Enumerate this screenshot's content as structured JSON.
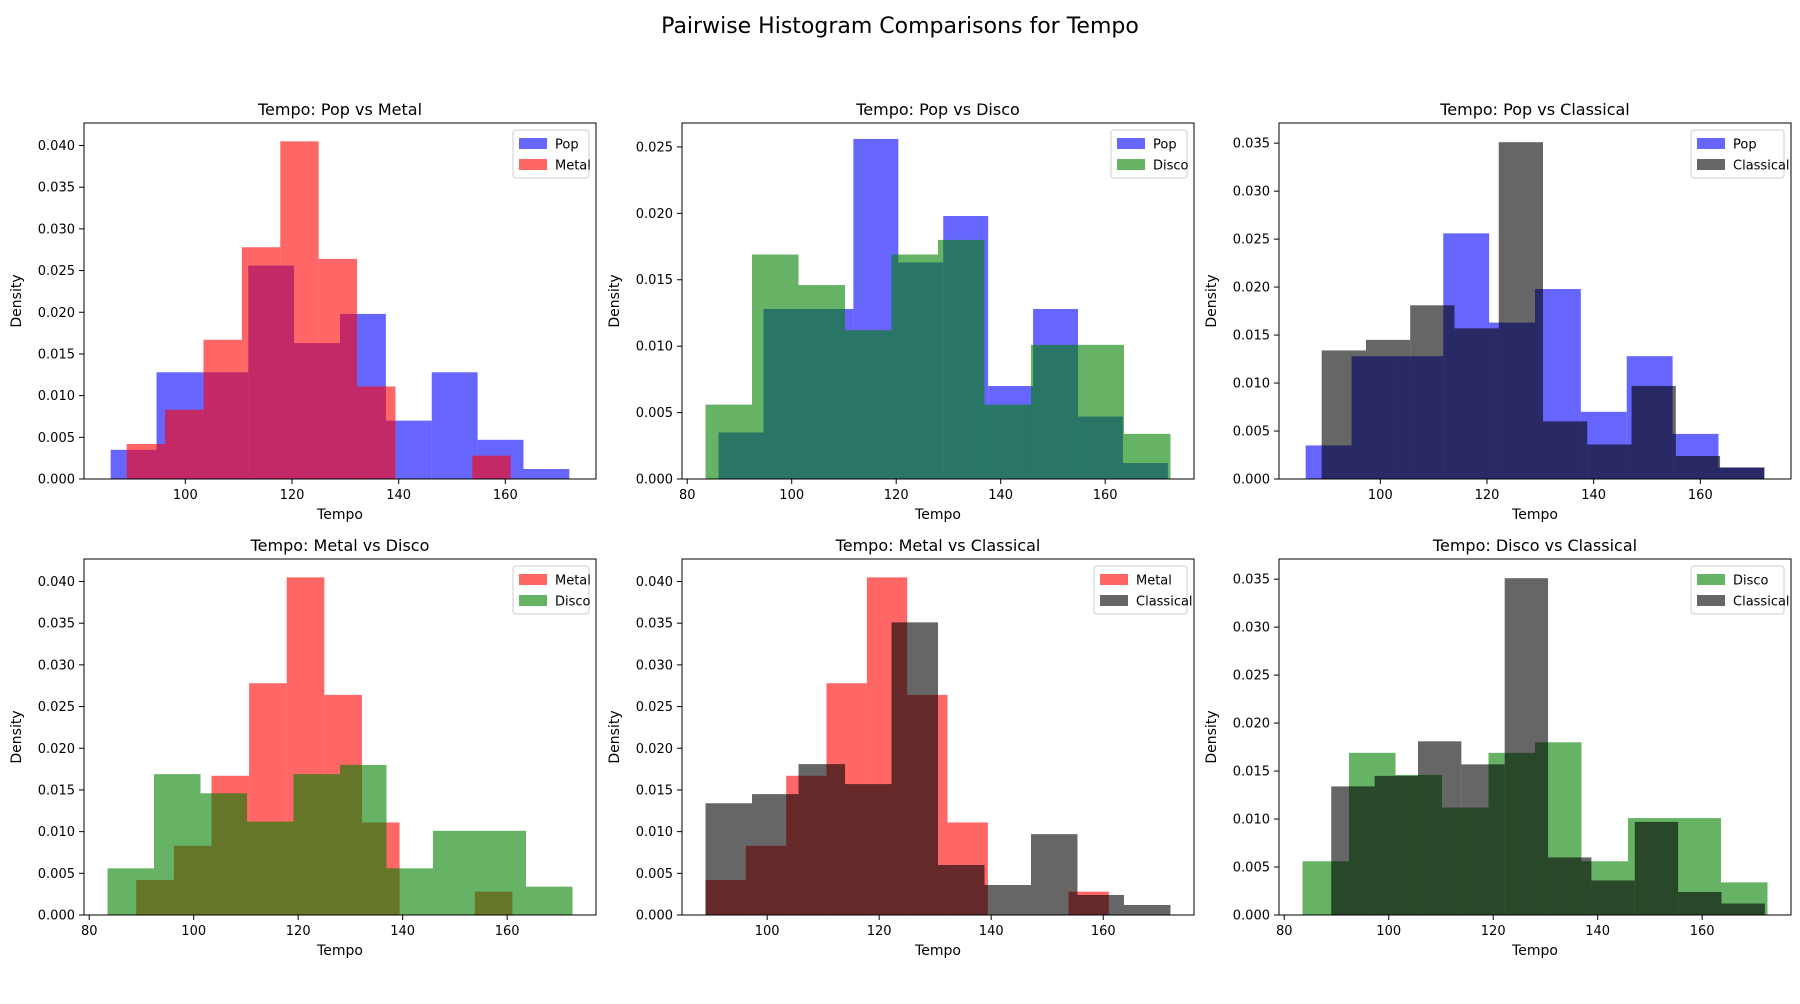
{
  "figure": {
    "title": "Pairwise Histogram Comparisons for Tempo"
  },
  "colors": {
    "Pop": "#0000ff",
    "Metal": "#ff0000",
    "Disco": "#008000",
    "Classical": "#000000"
  },
  "chart_data": [
    {
      "type": "bar",
      "title": "Tempo: Pop vs Metal",
      "xlabel": "Tempo",
      "ylabel": "Density",
      "xlim": [
        81,
        177
      ],
      "ylim": [
        0,
        0.0427
      ],
      "xticks": [
        "100",
        "120",
        "140",
        "160"
      ],
      "yticks": [
        "0.000",
        "0.005",
        "0.010",
        "0.015",
        "0.020",
        "0.025",
        "0.030",
        "0.035",
        "0.040"
      ],
      "legend": "top-right",
      "series": [
        {
          "name": "Pop",
          "color": "#0000ff",
          "edges": [
            86,
            94.6,
            103.2,
            111.8,
            120.4,
            129,
            137.6,
            146.2,
            154.8,
            163.4,
            172
          ],
          "values": [
            0.0035,
            0.0128,
            0.0128,
            0.0256,
            0.0163,
            0.0198,
            0.007,
            0.0128,
            0.0047,
            0.0012
          ]
        },
        {
          "name": "Metal",
          "color": "#ff0000",
          "edges": [
            89,
            96.2,
            103.4,
            110.6,
            117.8,
            125,
            132.2,
            139.4,
            146.6,
            153.8,
            161
          ],
          "values": [
            0.0042,
            0.0083,
            0.0167,
            0.0278,
            0.0405,
            0.0264,
            0.0111,
            0.0,
            0.0,
            0.0028
          ]
        }
      ]
    },
    {
      "type": "bar",
      "title": "Tempo: Pop vs Disco",
      "xlabel": "Tempo",
      "ylabel": "Density",
      "xlim": [
        79,
        177
      ],
      "ylim": [
        0,
        0.0268
      ],
      "xticks": [
        "80",
        "100",
        "120",
        "140",
        "160"
      ],
      "yticks": [
        "0.000",
        "0.005",
        "0.010",
        "0.015",
        "0.020",
        "0.025"
      ],
      "legend": "top-right",
      "series": [
        {
          "name": "Pop",
          "color": "#0000ff",
          "edges": [
            86,
            94.6,
            103.2,
            111.8,
            120.4,
            129,
            137.6,
            146.2,
            154.8,
            163.4,
            172
          ],
          "values": [
            0.0035,
            0.0128,
            0.0128,
            0.0256,
            0.0163,
            0.0198,
            0.007,
            0.0128,
            0.0047,
            0.0012
          ]
        },
        {
          "name": "Disco",
          "color": "#008000",
          "edges": [
            83.5,
            92.4,
            101.3,
            110.2,
            119.1,
            128,
            136.9,
            145.8,
            154.7,
            163.6,
            172.5
          ],
          "values": [
            0.0056,
            0.0169,
            0.0146,
            0.0112,
            0.0169,
            0.018,
            0.0056,
            0.0101,
            0.0101,
            0.0034
          ]
        }
      ]
    },
    {
      "type": "bar",
      "title": "Tempo: Pop vs Classical",
      "xlabel": "Tempo",
      "ylabel": "Density",
      "xlim": [
        81,
        177
      ],
      "ylim": [
        0,
        0.0371
      ],
      "xticks": [
        "100",
        "120",
        "140",
        "160"
      ],
      "yticks": [
        "0.000",
        "0.005",
        "0.010",
        "0.015",
        "0.020",
        "0.025",
        "0.030",
        "0.035"
      ],
      "legend": "top-right",
      "series": [
        {
          "name": "Pop",
          "color": "#0000ff",
          "edges": [
            86,
            94.6,
            103.2,
            111.8,
            120.4,
            129,
            137.6,
            146.2,
            154.8,
            163.4,
            172
          ],
          "values": [
            0.0035,
            0.0128,
            0.0128,
            0.0256,
            0.0163,
            0.0198,
            0.007,
            0.0128,
            0.0047,
            0.0012
          ]
        },
        {
          "name": "Classical",
          "color": "#000000",
          "edges": [
            89,
            97.3,
            105.6,
            113.9,
            122.2,
            130.5,
            138.8,
            147.1,
            155.4,
            163.7,
            172
          ],
          "values": [
            0.0134,
            0.0145,
            0.0181,
            0.0157,
            0.0351,
            0.006,
            0.0036,
            0.0097,
            0.0024,
            0.0012
          ]
        }
      ]
    },
    {
      "type": "bar",
      "title": "Tempo: Metal vs Disco",
      "xlabel": "Tempo",
      "ylabel": "Density",
      "xlim": [
        79,
        177
      ],
      "ylim": [
        0,
        0.0427
      ],
      "xticks": [
        "80",
        "100",
        "120",
        "140",
        "160"
      ],
      "yticks": [
        "0.000",
        "0.005",
        "0.010",
        "0.015",
        "0.020",
        "0.025",
        "0.030",
        "0.035",
        "0.040"
      ],
      "legend": "top-right",
      "series": [
        {
          "name": "Metal",
          "color": "#ff0000",
          "edges": [
            89,
            96.2,
            103.4,
            110.6,
            117.8,
            125,
            132.2,
            139.4,
            146.6,
            153.8,
            161
          ],
          "values": [
            0.0042,
            0.0083,
            0.0167,
            0.0278,
            0.0405,
            0.0264,
            0.0111,
            0.0,
            0.0,
            0.0028
          ]
        },
        {
          "name": "Disco",
          "color": "#008000",
          "edges": [
            83.5,
            92.4,
            101.3,
            110.2,
            119.1,
            128,
            136.9,
            145.8,
            154.7,
            163.6,
            172.5
          ],
          "values": [
            0.0056,
            0.0169,
            0.0146,
            0.0112,
            0.0169,
            0.018,
            0.0056,
            0.0101,
            0.0101,
            0.0034
          ]
        }
      ]
    },
    {
      "type": "bar",
      "title": "Tempo: Metal vs Classical",
      "xlabel": "Tempo",
      "ylabel": "Density",
      "xlim": [
        84.8,
        176.2
      ],
      "ylim": [
        0,
        0.0427
      ],
      "xticks": [
        "100",
        "120",
        "140",
        "160"
      ],
      "yticks": [
        "0.000",
        "0.005",
        "0.010",
        "0.015",
        "0.020",
        "0.025",
        "0.030",
        "0.035",
        "0.040"
      ],
      "legend": "top-right",
      "series": [
        {
          "name": "Metal",
          "color": "#ff0000",
          "edges": [
            89,
            96.2,
            103.4,
            110.6,
            117.8,
            125,
            132.2,
            139.4,
            146.6,
            153.8,
            161
          ],
          "values": [
            0.0042,
            0.0083,
            0.0167,
            0.0278,
            0.0405,
            0.0264,
            0.0111,
            0.0,
            0.0,
            0.0028
          ]
        },
        {
          "name": "Classical",
          "color": "#000000",
          "edges": [
            89,
            97.3,
            105.6,
            113.9,
            122.2,
            130.5,
            138.8,
            147.1,
            155.4,
            163.7,
            172
          ],
          "values": [
            0.0134,
            0.0145,
            0.0181,
            0.0157,
            0.0351,
            0.006,
            0.0036,
            0.0097,
            0.0024,
            0.0012
          ]
        }
      ]
    },
    {
      "type": "bar",
      "title": "Tempo: Disco vs Classical",
      "xlabel": "Tempo",
      "ylabel": "Density",
      "xlim": [
        79,
        177
      ],
      "ylim": [
        0,
        0.0371
      ],
      "xticks": [
        "80",
        "100",
        "120",
        "140",
        "160"
      ],
      "yticks": [
        "0.000",
        "0.005",
        "0.010",
        "0.015",
        "0.020",
        "0.025",
        "0.030",
        "0.035"
      ],
      "legend": "top-right",
      "series": [
        {
          "name": "Disco",
          "color": "#008000",
          "edges": [
            83.5,
            92.4,
            101.3,
            110.2,
            119.1,
            128,
            136.9,
            145.8,
            154.7,
            163.6,
            172.5
          ],
          "values": [
            0.0056,
            0.0169,
            0.0146,
            0.0112,
            0.0169,
            0.018,
            0.0056,
            0.0101,
            0.0101,
            0.0034
          ]
        },
        {
          "name": "Classical",
          "color": "#000000",
          "edges": [
            89,
            97.3,
            105.6,
            113.9,
            122.2,
            130.5,
            138.8,
            147.1,
            155.4,
            163.7,
            172
          ],
          "values": [
            0.0134,
            0.0145,
            0.0181,
            0.0157,
            0.0351,
            0.006,
            0.0036,
            0.0097,
            0.0024,
            0.0012
          ]
        }
      ]
    }
  ]
}
